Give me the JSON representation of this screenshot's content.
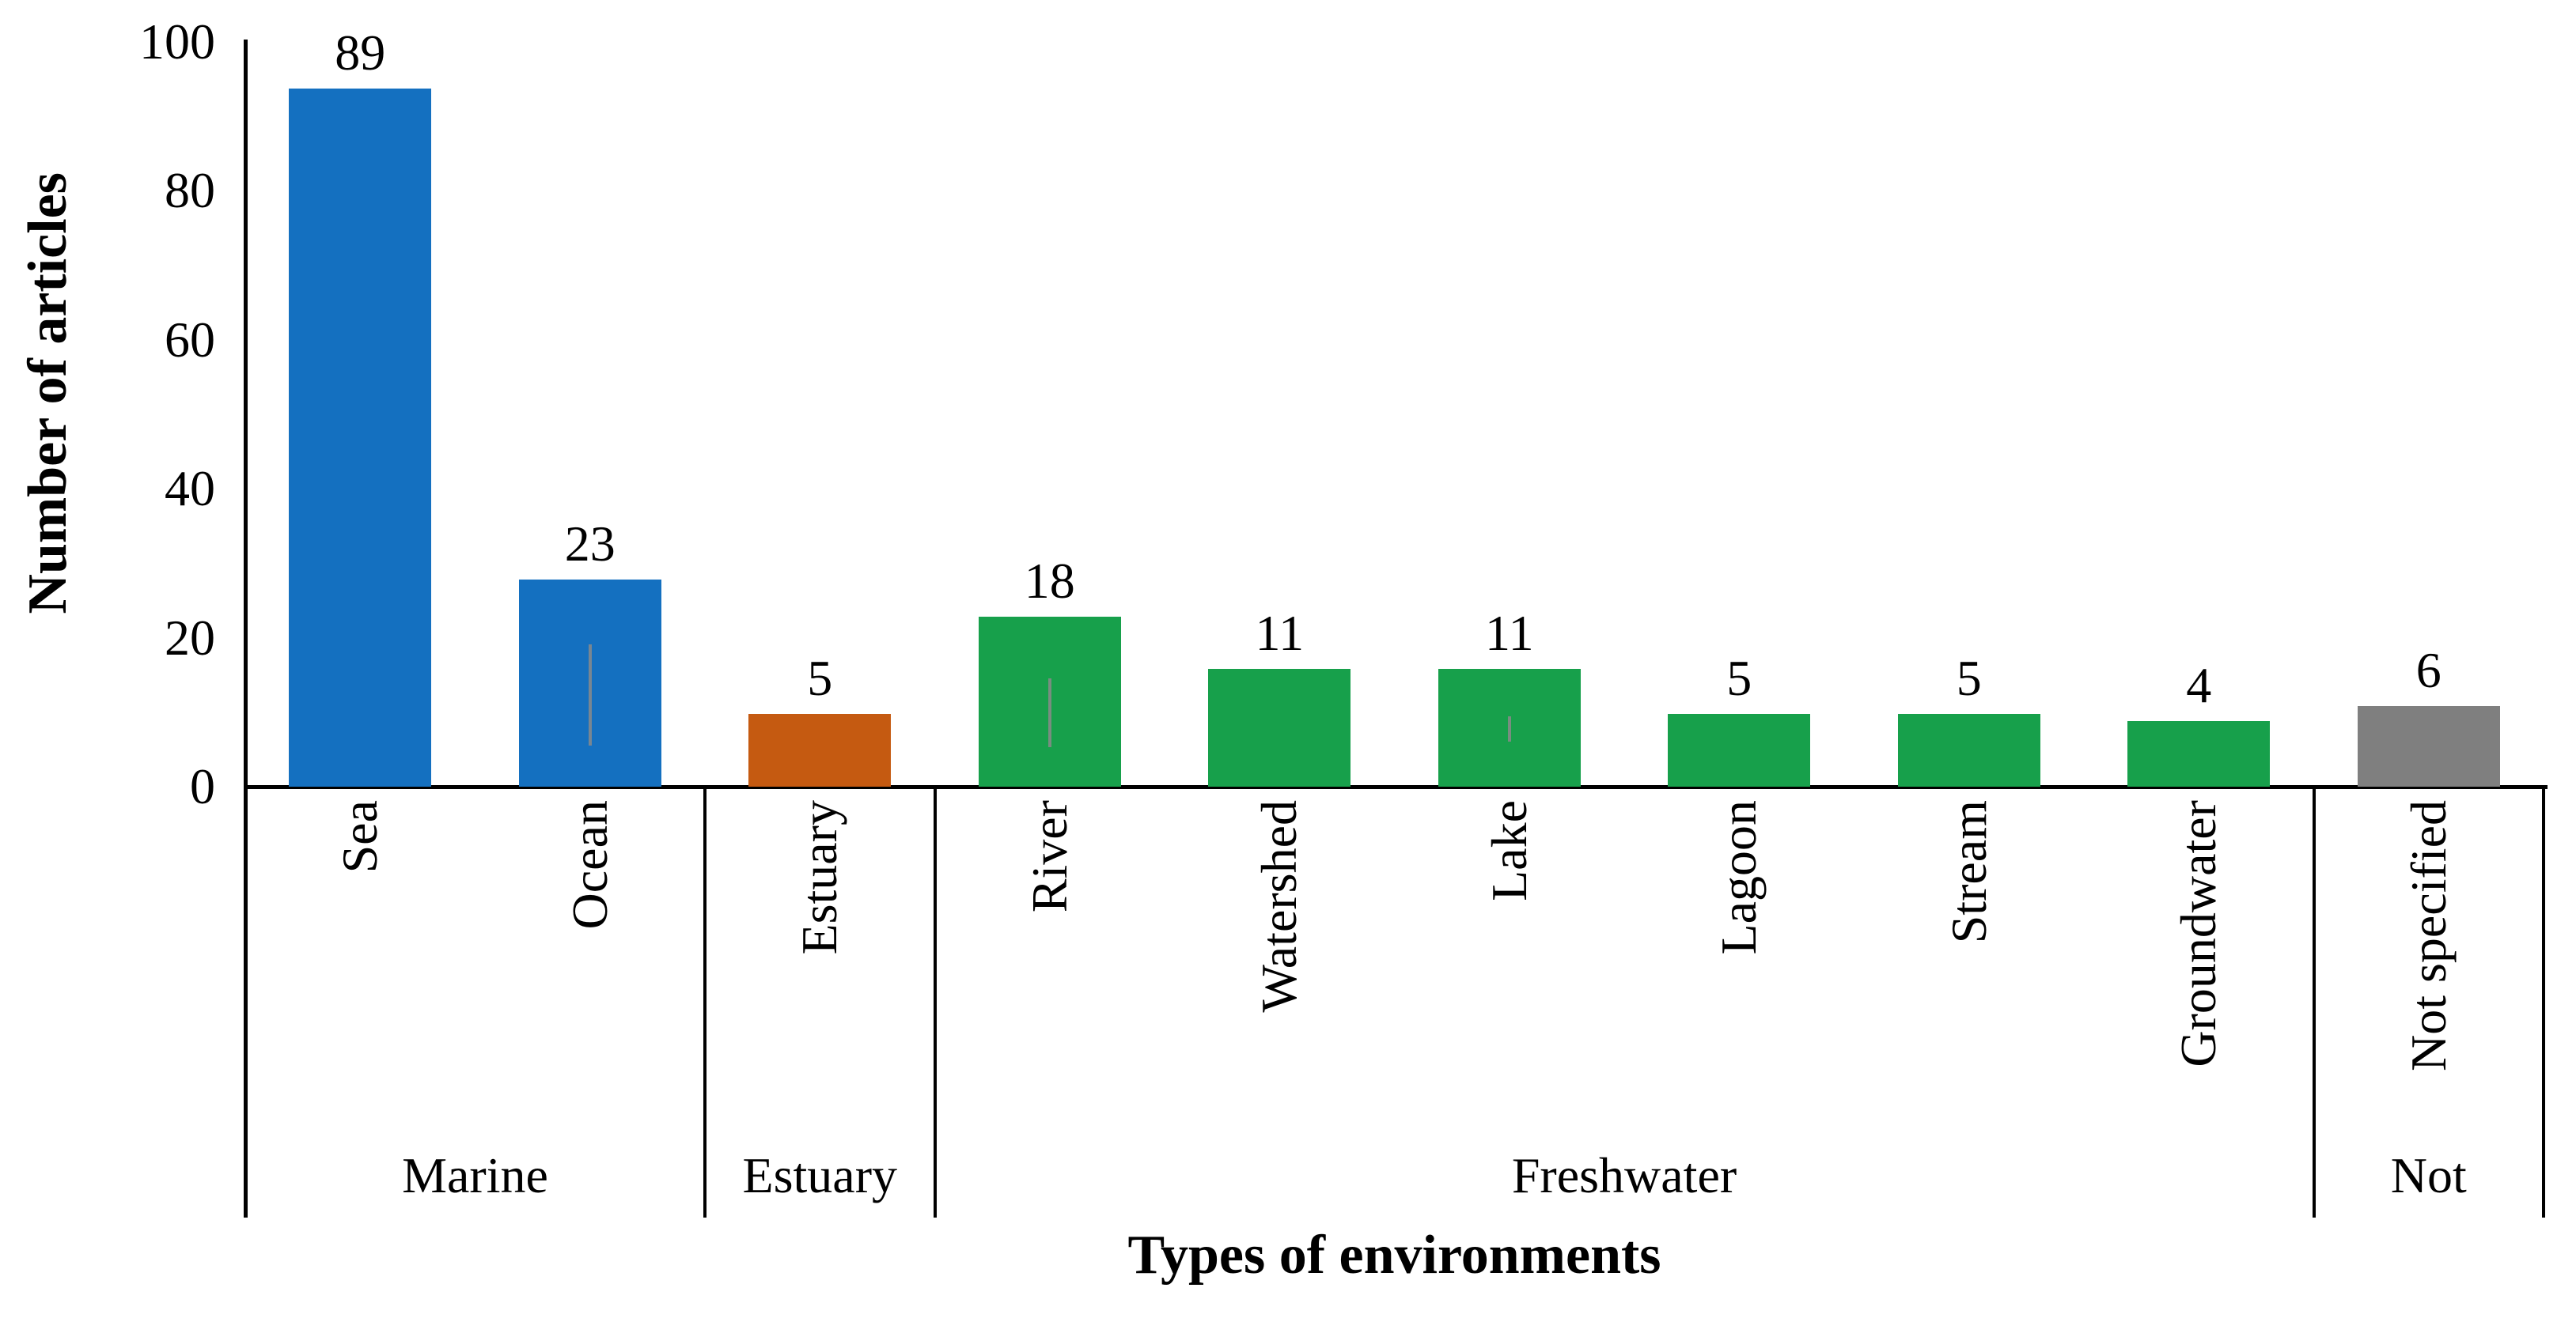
{
  "chart_data": {
    "type": "bar",
    "title": "",
    "xlabel": "Types of environments",
    "ylabel": "Number of articles",
    "ylim": [
      0,
      100
    ],
    "yticks": [
      0,
      20,
      40,
      60,
      80,
      100
    ],
    "grid": false,
    "legend": null,
    "categories": [
      "Sea",
      "Ocean",
      "Estuary",
      "River",
      "Watershed",
      "Lake",
      "Lagoon",
      "Stream",
      "Groundwater",
      "Not specified"
    ],
    "values": [
      89,
      23,
      5,
      18,
      11,
      11,
      5,
      5,
      4,
      6
    ],
    "bar_colors": [
      "#1470C0",
      "#1470C0",
      "#C55A11",
      "#17A04B",
      "#17A04B",
      "#17A04B",
      "#17A04B",
      "#17A04B",
      "#17A04B",
      "#7F7F7F"
    ],
    "groups": [
      {
        "label": "Marine",
        "start": 0,
        "end": 2
      },
      {
        "label": "Estuary",
        "start": 2,
        "end": 3
      },
      {
        "label": "Freshwater",
        "start": 3,
        "end": 9
      },
      {
        "label": "Not",
        "start": 9,
        "end": 10
      }
    ],
    "error_bar_remnants": [
      {
        "category": "Ocean",
        "from": 5.5,
        "to": 19.1
      },
      {
        "category": "River",
        "from": 5.3,
        "to": 14.5
      },
      {
        "category": "Lake",
        "from": 6.0,
        "to": 9.5
      }
    ],
    "colors": {
      "axis": "#000000",
      "error_mark": "#8a8a8a",
      "background": "#ffffff"
    }
  }
}
